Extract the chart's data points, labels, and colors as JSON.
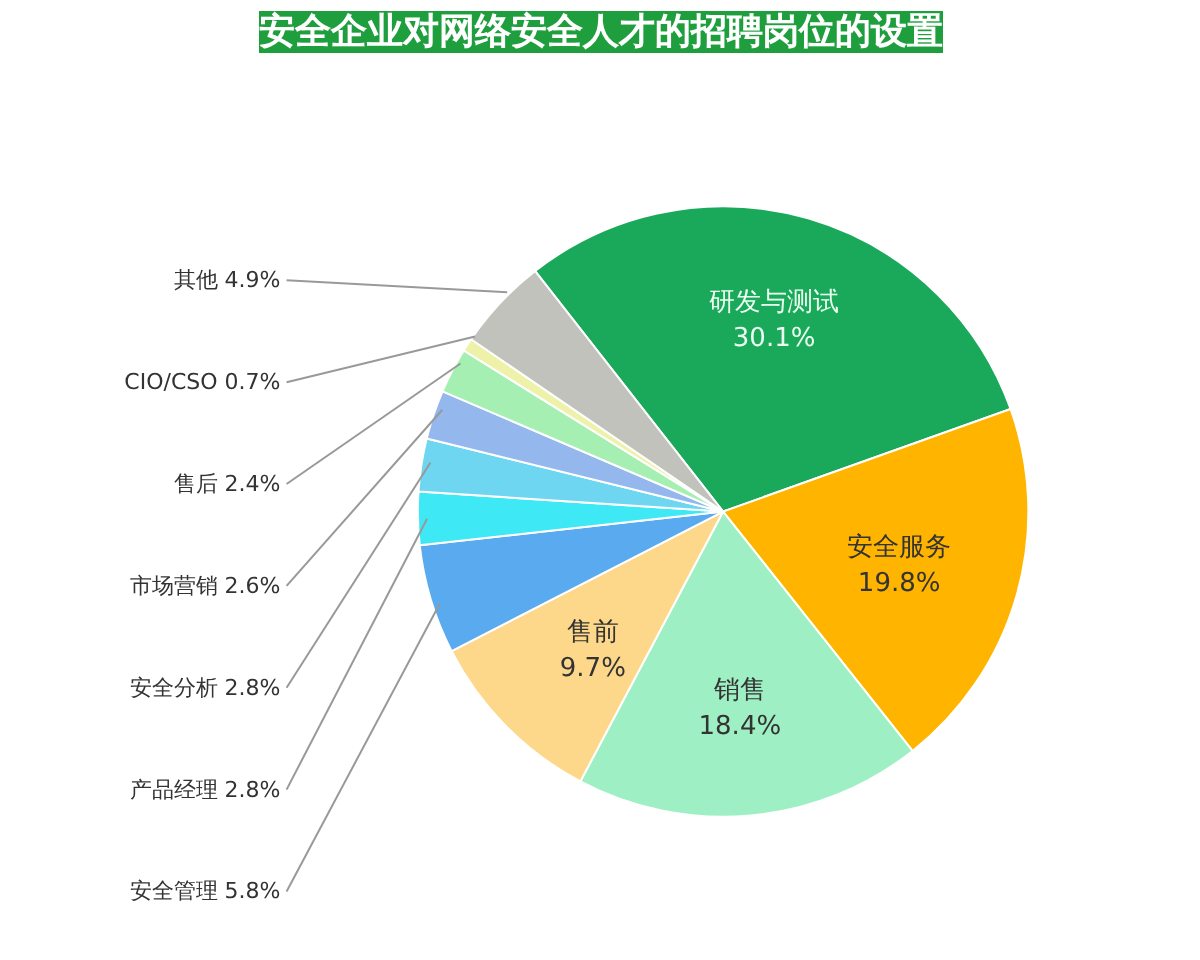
{
  "chart_data": {
    "type": "pie",
    "title": "安全企业对网络安全人才的招聘岗位的设置",
    "categories": [
      "研发与测试",
      "安全服务",
      "销售",
      "售前",
      "安全管理",
      "产品经理",
      "安全分析",
      "市场营销",
      "售后",
      "CIO/CSO",
      "其他"
    ],
    "values": [
      30.1,
      19.8,
      18.4,
      9.7,
      5.8,
      2.8,
      2.8,
      2.6,
      2.4,
      0.7,
      4.9
    ],
    "value_labels": [
      "30.1%",
      "19.8%",
      "18.4%",
      "9.7%",
      "5.8%",
      "2.8%",
      "2.8%",
      "2.6%",
      "2.4%",
      "0.7%",
      "4.9%"
    ],
    "colors": [
      "#1aa85a",
      "#ffb400",
      "#9ef0c4",
      "#fdd88a",
      "#5aaaf0",
      "#3fe8f5",
      "#6fd6f2",
      "#94b8ee",
      "#a6efb2",
      "#eef2a8",
      "#c2c2bc"
    ]
  }
}
